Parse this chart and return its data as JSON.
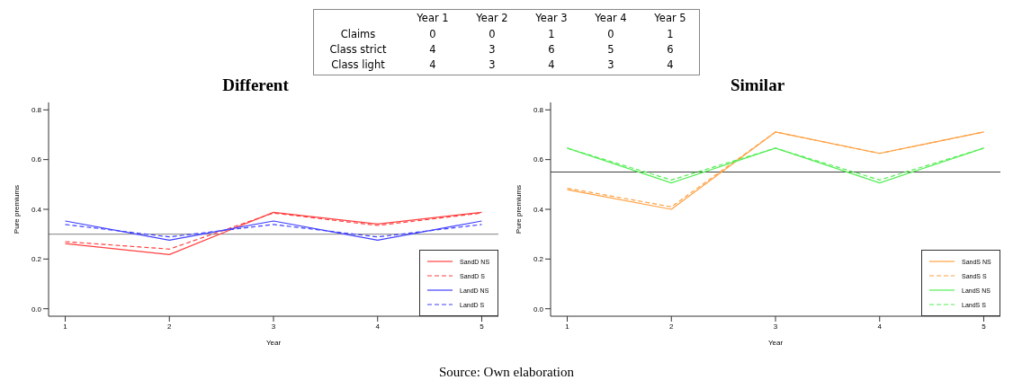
{
  "chart_data": [
    {
      "type": "heatmap",
      "categories": [
        "Year 1",
        "Year 2",
        "Year 3",
        "Year 4",
        "Year 5"
      ],
      "y_categories": [
        "Claims",
        "Class strict",
        "Class light"
      ],
      "cells": [
        [
          0,
          0,
          1,
          0,
          1
        ],
        [
          4,
          3,
          6,
          5,
          6
        ],
        [
          4,
          3,
          4,
          3,
          4
        ]
      ],
      "data_labels": true,
      "annotations": [
        "Source: Own elaboration"
      ]
    },
    {
      "type": "line",
      "title": "Different",
      "xlabel": "Year",
      "ylabel": "Pure premiums",
      "x": [
        1,
        2,
        3,
        4,
        5
      ],
      "xlim": [
        0.84,
        5.16
      ],
      "xticks": [
        1,
        2,
        3,
        4,
        5
      ],
      "ylim": [
        -0.03,
        0.83
      ],
      "yticks": [
        {
          "value": 0,
          "label": "0.0"
        },
        0.2,
        0.4,
        0.6,
        0.8
      ],
      "grid": false,
      "legend": "bottom right",
      "marker": "none",
      "ref_lines": [
        {
          "axis": "y",
          "value": 0.3,
          "color": "#808080"
        }
      ],
      "series": [
        {
          "name": "SandD NS",
          "color": "#ff4040",
          "line_style": "solid",
          "values": [
            0.262,
            0.218,
            0.388,
            0.341,
            0.388
          ]
        },
        {
          "name": "SandD S",
          "color": "#ff4040",
          "line_style": "dashed",
          "values": [
            0.27,
            0.24,
            0.385,
            0.335,
            0.385
          ]
        },
        {
          "name": "LandD NS",
          "color": "#4040ff",
          "line_style": "solid",
          "values": [
            0.353,
            0.276,
            0.353,
            0.276,
            0.353
          ]
        },
        {
          "name": "LandD S",
          "color": "#4040ff",
          "line_style": "dashed",
          "values": [
            0.339,
            0.289,
            0.339,
            0.289,
            0.339
          ]
        }
      ]
    },
    {
      "type": "line",
      "title": "Similar",
      "xlabel": "Year",
      "ylabel": "Pure premiums",
      "x": [
        1,
        2,
        3,
        4,
        5
      ],
      "xlim": [
        0.84,
        5.16
      ],
      "xticks": [
        1,
        2,
        3,
        4,
        5
      ],
      "ylim": [
        -0.03,
        0.83
      ],
      "yticks": [
        {
          "value": 0,
          "label": "0.0"
        },
        0.2,
        0.4,
        0.6,
        0.8
      ],
      "grid": false,
      "legend": "bottom right",
      "marker": "none",
      "ref_lines": [
        {
          "axis": "y",
          "value": 0.55,
          "color": "#404040"
        }
      ],
      "series": [
        {
          "name": "SandS NS",
          "color": "#ffa040",
          "line_style": "solid",
          "values": [
            0.479,
            0.4,
            0.711,
            0.625,
            0.711
          ]
        },
        {
          "name": "SandS S",
          "color": "#ffa040",
          "line_style": "dashed",
          "values": [
            0.485,
            0.41,
            0.711,
            0.625,
            0.711
          ]
        },
        {
          "name": "LandS NS",
          "color": "#55ee55",
          "line_style": "solid",
          "values": [
            0.646,
            0.506,
            0.646,
            0.506,
            0.646
          ]
        },
        {
          "name": "LandS S",
          "color": "#55ee55",
          "line_style": "dashed",
          "values": [
            0.646,
            0.518,
            0.646,
            0.518,
            0.646
          ]
        }
      ]
    }
  ]
}
